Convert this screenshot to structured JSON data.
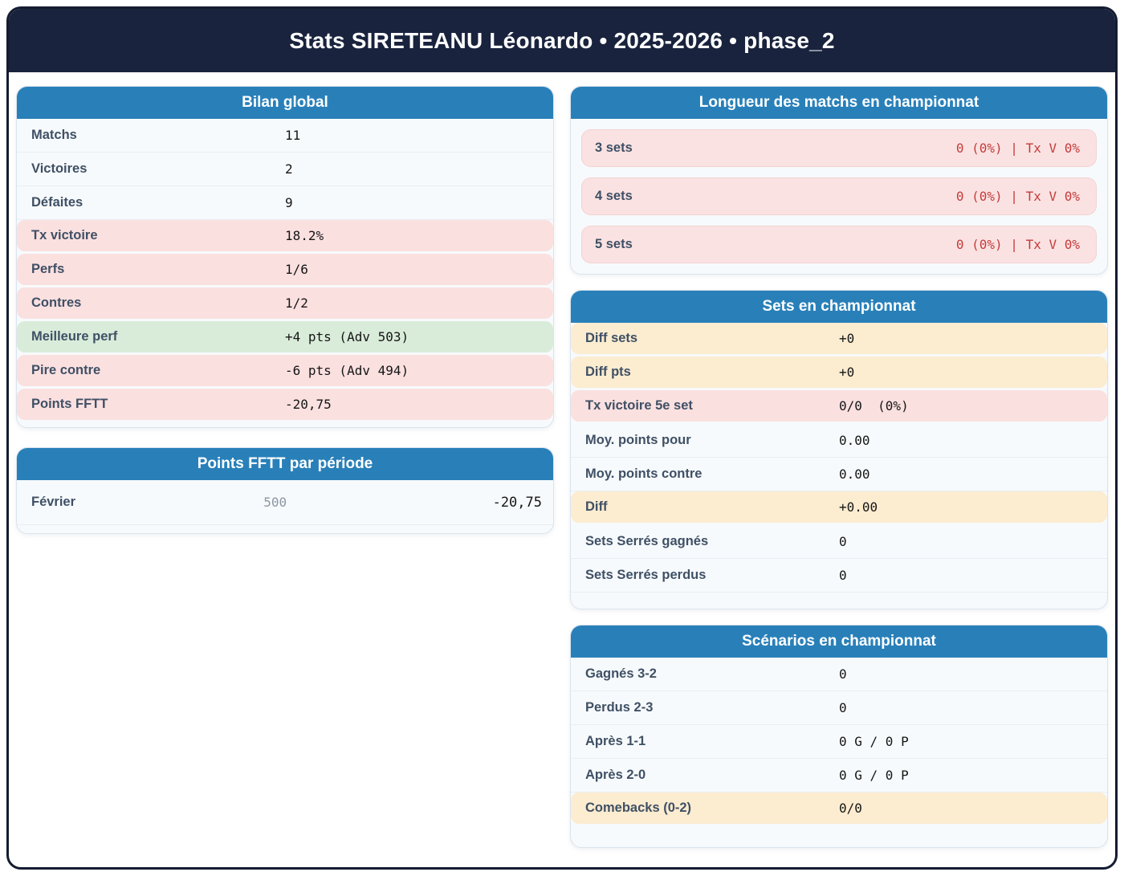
{
  "page": {
    "title": "Stats SIRETEANU Léonardo • 2025-2026 • phase_2"
  },
  "colors": {
    "header_navy": "#19233d",
    "card_header_blue": "#2980b9",
    "highlight_pink": "#fbe0e0",
    "highlight_green": "#d9ecda",
    "highlight_cream": "#fcecd0",
    "value_red": "#c33c3c"
  },
  "cards": {
    "bilan": {
      "title": "Bilan global",
      "rows": [
        {
          "label": "Matchs",
          "value": "11"
        },
        {
          "label": "Victoires",
          "value": "2"
        },
        {
          "label": "Défaites",
          "value": "9"
        },
        {
          "label": "Tx victoire",
          "value": "18.2%"
        },
        {
          "label": "Perfs",
          "value": "1/6"
        },
        {
          "label": "Contres",
          "value": "1/2"
        },
        {
          "label": "Meilleure perf",
          "value": "+4 pts (Adv 503)"
        },
        {
          "label": "Pire contre",
          "value": "-6 pts (Adv 494)"
        },
        {
          "label": "Points FFTT",
          "value": "-20,75"
        }
      ]
    },
    "periode": {
      "title": "Points FFTT par période",
      "rows": [
        {
          "label": "Février",
          "mid": "500",
          "value": "-20,75"
        }
      ]
    },
    "longueur": {
      "title": "Longueur des matchs en championnat",
      "rows": [
        {
          "label": "3 sets",
          "value": "0 (0%) | Tx V 0%"
        },
        {
          "label": "4 sets",
          "value": "0 (0%) | Tx V 0%"
        },
        {
          "label": "5 sets",
          "value": "0 (0%) | Tx V 0%"
        }
      ]
    },
    "sets": {
      "title": "Sets en championnat",
      "rows": [
        {
          "label": "Diff sets",
          "value": "+0"
        },
        {
          "label": "Diff pts",
          "value": "+0"
        },
        {
          "label": "Tx victoire 5e set",
          "value": "0/0  (0%)"
        },
        {
          "label": "Moy. points pour",
          "value": "0.00"
        },
        {
          "label": "Moy. points contre",
          "value": "0.00"
        },
        {
          "label": "Diff",
          "value": "+0.00"
        },
        {
          "label": "Sets Serrés gagnés",
          "value": "0"
        },
        {
          "label": "Sets Serrés perdus",
          "value": "0"
        }
      ]
    },
    "scenarios": {
      "title": "Scénarios en championnat",
      "rows": [
        {
          "label": "Gagnés 3-2",
          "value": "0"
        },
        {
          "label": "Perdus 2-3",
          "value": "0"
        },
        {
          "label": "Après 1-1",
          "value": "0 G / 0 P"
        },
        {
          "label": "Après 2-0",
          "value": "0 G / 0 P"
        },
        {
          "label": "Comebacks (0-2)",
          "value": "0/0"
        }
      ]
    }
  }
}
